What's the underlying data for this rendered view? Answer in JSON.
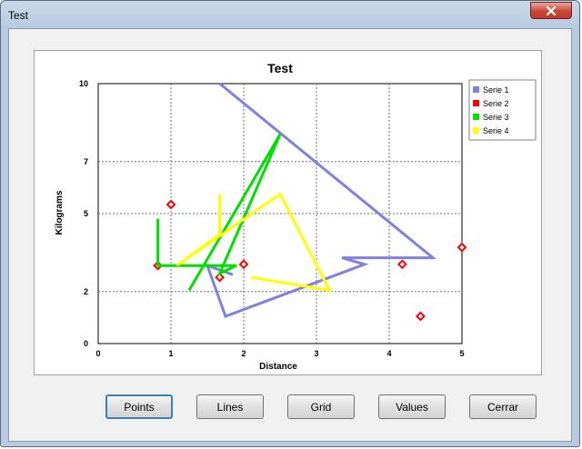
{
  "window": {
    "title": "Test"
  },
  "buttons": {
    "points": "Points",
    "lines": "Lines",
    "grid": "Grid",
    "values": "Values",
    "close": "Cerrar"
  },
  "chart_data": {
    "type": "line",
    "title": "Test",
    "xlabel": "Distance",
    "ylabel": "Kilograms",
    "xlim": [
      0,
      5
    ],
    "ylim": [
      0,
      10
    ],
    "x_ticks": [
      "0",
      "1",
      "2",
      "3",
      "4",
      "5"
    ],
    "y_ticks": [
      "0",
      "2",
      "5",
      "7",
      "10"
    ],
    "grid": true,
    "legend_position": "right",
    "series": [
      {
        "name": "Serie 1",
        "type": "line",
        "color": "#8080e0",
        "x": [
          1.67,
          4.6,
          3.35,
          3.66,
          1.75,
          1.5,
          1.85
        ],
        "y": [
          10.0,
          3.3,
          3.3,
          3.05,
          1.05,
          3.0,
          2.65
        ]
      },
      {
        "name": "Serie 2",
        "type": "scatter",
        "color": "#ff0000",
        "x": [
          0.82,
          1.0,
          1.67,
          2.0,
          4.18,
          4.43,
          5.0
        ],
        "y": [
          3.0,
          5.35,
          2.55,
          3.05,
          3.05,
          1.05,
          3.7
        ]
      },
      {
        "name": "Serie 3",
        "type": "line",
        "color": "#00e000",
        "x": [
          0.82,
          0.82,
          1.9,
          1.67,
          2.5,
          1.25
        ],
        "y": [
          4.8,
          3.0,
          3.0,
          2.7,
          8.05,
          2.05
        ]
      },
      {
        "name": "Serie 4",
        "type": "line",
        "color": "#ffff00",
        "x": [
          1.67,
          1.67,
          1.08,
          2.5,
          3.18,
          2.1
        ],
        "y": [
          5.75,
          4.2,
          3.0,
          5.75,
          2.05,
          2.55
        ]
      }
    ]
  }
}
